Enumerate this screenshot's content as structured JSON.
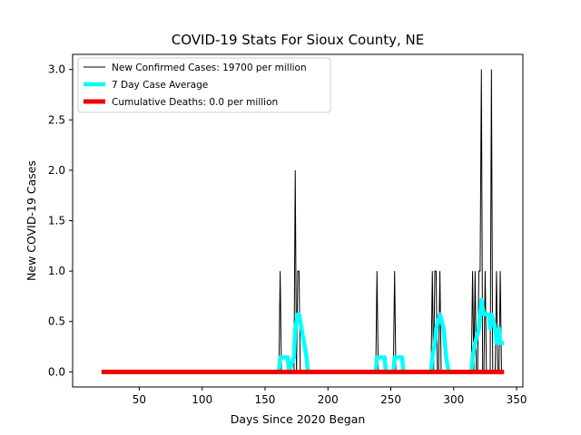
{
  "chart_data": {
    "type": "line",
    "title": "COVID-19 Stats For Sioux County, NE",
    "xlabel": "Days Since 2020 Began",
    "ylabel": "New COVID-19 Cases",
    "xlim": [
      -3,
      355
    ],
    "ylim": [
      -0.15,
      3.15
    ],
    "xticks": [
      50,
      100,
      150,
      200,
      250,
      300,
      350
    ],
    "yticks": [
      0.0,
      0.5,
      1.0,
      1.5,
      2.0,
      2.5,
      3.0
    ],
    "ytick_labels": [
      "0.0",
      "0.5",
      "1.0",
      "1.5",
      "2.0",
      "2.5",
      "3.0"
    ],
    "legend_position": "top-left",
    "series": [
      {
        "name": "New Confirmed Cases: 19700 per million",
        "color": "#000000",
        "style": "thin",
        "spikes": [
          {
            "x": 162,
            "y": 1
          },
          {
            "x": 174,
            "y": 2
          },
          {
            "x": 176,
            "y": 1
          },
          {
            "x": 177,
            "y": 1
          },
          {
            "x": 239,
            "y": 1
          },
          {
            "x": 253,
            "y": 1
          },
          {
            "x": 283,
            "y": 1
          },
          {
            "x": 285,
            "y": 1
          },
          {
            "x": 286,
            "y": 1
          },
          {
            "x": 289,
            "y": 1
          },
          {
            "x": 315,
            "y": 1
          },
          {
            "x": 317,
            "y": 1
          },
          {
            "x": 320,
            "y": 1
          },
          {
            "x": 321,
            "y": 1
          },
          {
            "x": 322,
            "y": 3
          },
          {
            "x": 325,
            "y": 1
          },
          {
            "x": 330,
            "y": 3
          },
          {
            "x": 334,
            "y": 1
          },
          {
            "x": 337,
            "y": 1
          }
        ],
        "x_range": [
          20,
          340
        ]
      },
      {
        "name": "7 Day Case Average",
        "color": "#00ffff",
        "style": "thick",
        "x": [
          20,
          161,
          162,
          168,
          169,
          173,
          174,
          176,
          177,
          181,
          183,
          184,
          238,
          239,
          245,
          246,
          252,
          253,
          259,
          260,
          282,
          283,
          285,
          286,
          289,
          292,
          294,
          296,
          314,
          315,
          317,
          320,
          321,
          322,
          324,
          325,
          328,
          329,
          330,
          333,
          334,
          336,
          337,
          340
        ],
        "y": [
          0,
          0,
          0.143,
          0.143,
          0,
          0.143,
          0.429,
          0.571,
          0.571,
          0.286,
          0.143,
          0,
          0,
          0.143,
          0.143,
          0,
          0,
          0.143,
          0.143,
          0,
          0,
          0.143,
          0.286,
          0.429,
          0.571,
          0.429,
          0.143,
          0,
          0,
          0.143,
          0.286,
          0.429,
          0.571,
          0.714,
          0.571,
          0.571,
          0.571,
          0.429,
          0.571,
          0.429,
          0.286,
          0.429,
          0.286,
          0.286
        ]
      },
      {
        "name": "Cumulative Deaths: 0.0 per million",
        "color": "#ee0000",
        "style": "thick",
        "x": [
          20,
          340
        ],
        "y": [
          0,
          0
        ]
      }
    ]
  }
}
